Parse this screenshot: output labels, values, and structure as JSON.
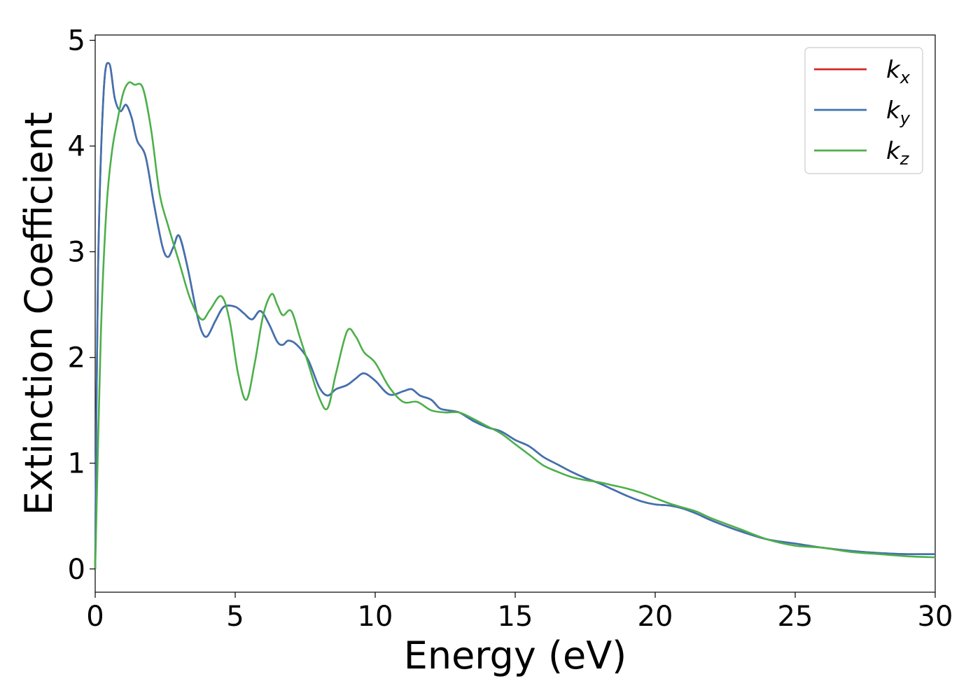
{
  "chart_data": {
    "type": "line",
    "title": "",
    "xlabel": "Energy (eV)",
    "ylabel": "Extinction Coefficient",
    "xlim": [
      0,
      30
    ],
    "ylim": [
      -0.22,
      5.05
    ],
    "xticks": [
      "0",
      "5",
      "10",
      "15",
      "20",
      "25",
      "30"
    ],
    "yticks": [
      "0",
      "1",
      "2",
      "3",
      "4",
      "5"
    ],
    "grid": false,
    "legend_position": "top-right",
    "series": [
      {
        "name": "k",
        "subscript": "x",
        "color": "#d62728",
        "x": [
          0,
          0.1,
          0.3,
          0.5,
          0.7,
          0.9,
          1.1,
          1.3,
          1.5,
          1.8,
          2.1,
          2.4,
          2.6,
          2.8,
          3.0,
          3.3,
          3.6,
          3.8,
          4.0,
          4.3,
          4.6,
          5.0,
          5.3,
          5.6,
          5.9,
          6.2,
          6.5,
          6.7,
          6.9,
          7.2,
          7.6,
          8.0,
          8.3,
          8.6,
          9.0,
          9.3,
          9.6,
          10.0,
          10.5,
          11.0,
          11.3,
          11.6,
          12.0,
          12.3,
          12.6,
          13.0,
          13.5,
          14.0,
          14.5,
          15.0,
          15.5,
          16.0,
          16.5,
          17.0,
          17.5,
          18.0,
          18.5,
          19.0,
          19.5,
          20.0,
          20.5,
          21.0,
          21.5,
          22.0,
          23.0,
          24.0,
          25.0,
          26.0,
          27.0,
          28.0,
          29.0,
          30.0
        ],
        "values": [
          0.0,
          2.8,
          4.5,
          4.78,
          4.45,
          4.33,
          4.39,
          4.27,
          4.05,
          3.9,
          3.45,
          3.05,
          2.95,
          3.05,
          3.15,
          2.85,
          2.45,
          2.25,
          2.2,
          2.35,
          2.48,
          2.48,
          2.42,
          2.36,
          2.44,
          2.32,
          2.15,
          2.12,
          2.16,
          2.12,
          1.98,
          1.72,
          1.64,
          1.7,
          1.74,
          1.8,
          1.85,
          1.78,
          1.65,
          1.68,
          1.7,
          1.64,
          1.6,
          1.52,
          1.5,
          1.48,
          1.4,
          1.34,
          1.3,
          1.22,
          1.16,
          1.06,
          0.99,
          0.92,
          0.86,
          0.81,
          0.75,
          0.69,
          0.64,
          0.61,
          0.6,
          0.57,
          0.52,
          0.46,
          0.36,
          0.28,
          0.24,
          0.2,
          0.17,
          0.15,
          0.14,
          0.14
        ]
      },
      {
        "name": "k",
        "subscript": "y",
        "color": "#3d73b3",
        "x": [
          0,
          0.1,
          0.3,
          0.5,
          0.7,
          0.9,
          1.1,
          1.3,
          1.5,
          1.8,
          2.1,
          2.4,
          2.6,
          2.8,
          3.0,
          3.3,
          3.6,
          3.8,
          4.0,
          4.3,
          4.6,
          5.0,
          5.3,
          5.6,
          5.9,
          6.2,
          6.5,
          6.7,
          6.9,
          7.2,
          7.6,
          8.0,
          8.3,
          8.6,
          9.0,
          9.3,
          9.6,
          10.0,
          10.5,
          11.0,
          11.3,
          11.6,
          12.0,
          12.3,
          12.6,
          13.0,
          13.5,
          14.0,
          14.5,
          15.0,
          15.5,
          16.0,
          16.5,
          17.0,
          17.5,
          18.0,
          18.5,
          19.0,
          19.5,
          20.0,
          20.5,
          21.0,
          21.5,
          22.0,
          23.0,
          24.0,
          25.0,
          26.0,
          27.0,
          28.0,
          29.0,
          30.0
        ],
        "values": [
          0.0,
          2.8,
          4.5,
          4.78,
          4.45,
          4.33,
          4.39,
          4.27,
          4.05,
          3.9,
          3.45,
          3.05,
          2.95,
          3.05,
          3.15,
          2.85,
          2.45,
          2.25,
          2.2,
          2.35,
          2.48,
          2.48,
          2.42,
          2.36,
          2.44,
          2.32,
          2.15,
          2.12,
          2.16,
          2.12,
          1.98,
          1.72,
          1.64,
          1.7,
          1.74,
          1.8,
          1.85,
          1.78,
          1.65,
          1.68,
          1.7,
          1.64,
          1.6,
          1.52,
          1.5,
          1.48,
          1.4,
          1.34,
          1.3,
          1.22,
          1.16,
          1.06,
          0.99,
          0.92,
          0.86,
          0.81,
          0.75,
          0.69,
          0.64,
          0.61,
          0.6,
          0.57,
          0.52,
          0.46,
          0.36,
          0.28,
          0.24,
          0.2,
          0.17,
          0.15,
          0.14,
          0.14
        ]
      },
      {
        "name": "k",
        "subscript": "z",
        "color": "#4daf4a",
        "x": [
          0,
          0.2,
          0.4,
          0.6,
          0.8,
          1.0,
          1.2,
          1.4,
          1.7,
          2.0,
          2.3,
          2.6,
          3.0,
          3.4,
          3.8,
          4.1,
          4.5,
          4.8,
          5.1,
          5.4,
          5.7,
          6.0,
          6.3,
          6.5,
          6.7,
          7.0,
          7.3,
          7.6,
          8.0,
          8.3,
          8.6,
          9.0,
          9.3,
          9.6,
          10.0,
          10.5,
          11.0,
          11.5,
          12.0,
          12.5,
          13.0,
          13.5,
          14.0,
          14.5,
          15.0,
          15.5,
          16.0,
          16.5,
          17.0,
          17.5,
          18.0,
          18.5,
          19.0,
          19.5,
          20.0,
          20.5,
          21.0,
          21.5,
          22.0,
          23.0,
          24.0,
          25.0,
          26.0,
          27.0,
          28.0,
          29.0,
          30.0
        ],
        "values": [
          0.0,
          2.2,
          3.4,
          3.95,
          4.25,
          4.5,
          4.6,
          4.58,
          4.55,
          4.15,
          3.55,
          3.25,
          2.9,
          2.55,
          2.36,
          2.45,
          2.58,
          2.35,
          1.85,
          1.6,
          1.95,
          2.4,
          2.6,
          2.5,
          2.4,
          2.44,
          2.2,
          1.95,
          1.62,
          1.52,
          1.85,
          2.25,
          2.2,
          2.05,
          1.95,
          1.72,
          1.58,
          1.58,
          1.5,
          1.48,
          1.48,
          1.42,
          1.35,
          1.28,
          1.18,
          1.08,
          0.98,
          0.92,
          0.87,
          0.84,
          0.82,
          0.79,
          0.76,
          0.72,
          0.67,
          0.62,
          0.58,
          0.54,
          0.48,
          0.38,
          0.28,
          0.22,
          0.2,
          0.16,
          0.14,
          0.12,
          0.11
        ]
      }
    ]
  }
}
